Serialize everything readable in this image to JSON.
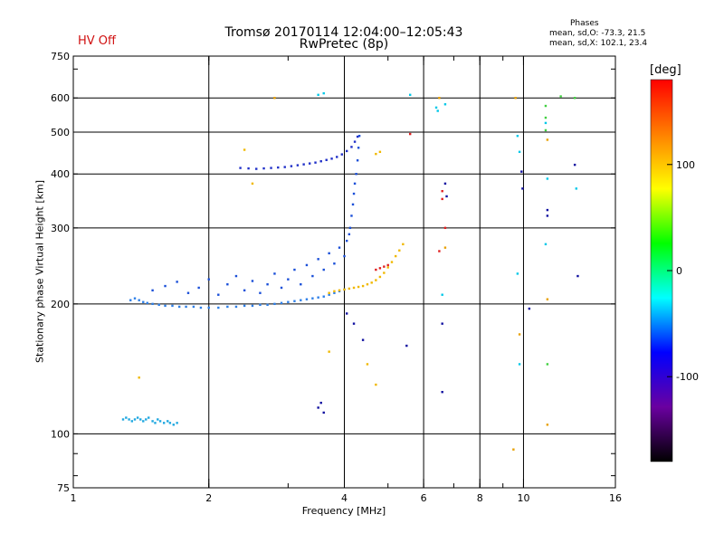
{
  "status": {
    "hv": "HV Off",
    "hv_color": "#d01010"
  },
  "phases": {
    "title": "Phases",
    "o_line": "mean, sd,O: -73.3, 21.5",
    "x_line": "mean, sd,X: 102.1, 23.4"
  },
  "chart_data": {
    "type": "scatter",
    "title": "Tromsø 20170114 12:04:00–12:05:43",
    "subtitle": "RwPretec (8p)",
    "xlabel": "Frequency [MHz]",
    "ylabel": "Stationary phase Virtual Height [km]",
    "x_scale": "log",
    "y_scale": "log",
    "xlim": [
      1,
      16
    ],
    "ylim": [
      75,
      750
    ],
    "x_ticks": [
      1,
      2,
      4,
      6,
      8,
      10,
      16
    ],
    "x_tick_labels": [
      "1",
      "2",
      "4",
      "6",
      "8",
      "10",
      "16"
    ],
    "x_grid": [
      2,
      4,
      6,
      8,
      10
    ],
    "y_ticks": [
      75,
      100,
      200,
      300,
      400,
      500,
      600,
      750
    ],
    "y_tick_labels": [
      "75",
      "100",
      "200",
      "300",
      "400",
      "500",
      "600",
      "750"
    ],
    "y_grid": [
      100,
      200,
      300,
      400,
      500,
      600
    ],
    "colorbar": {
      "unit": "[deg]",
      "range": [
        -180,
        180
      ],
      "ticks": [
        100,
        0,
        -100
      ],
      "tick_labels": [
        "100",
        "0",
        "-100"
      ],
      "colors": [
        "#000000",
        "#6a00a0",
        "#0000ff",
        "#00ffff",
        "#00ff00",
        "#ffff00",
        "#ff8000",
        "#ff0000"
      ]
    },
    "series": [
      {
        "color": "#1fa7e0",
        "points": [
          [
            1.29,
            108
          ],
          [
            1.31,
            109
          ],
          [
            1.33,
            108
          ],
          [
            1.35,
            107
          ],
          [
            1.37,
            108
          ],
          [
            1.39,
            109
          ],
          [
            1.41,
            108
          ],
          [
            1.43,
            107
          ],
          [
            1.45,
            108
          ],
          [
            1.47,
            109
          ],
          [
            1.5,
            107
          ],
          [
            1.52,
            106
          ],
          [
            1.54,
            108
          ],
          [
            1.56,
            107
          ],
          [
            1.59,
            106
          ],
          [
            1.62,
            107
          ],
          [
            1.64,
            106
          ],
          [
            1.67,
            105
          ],
          [
            1.7,
            106
          ]
        ]
      },
      {
        "color": "#2d7fe8",
        "points": [
          [
            1.34,
            204
          ],
          [
            1.37,
            206
          ],
          [
            1.4,
            204
          ],
          [
            1.43,
            202
          ],
          [
            1.46,
            201
          ],
          [
            1.5,
            200
          ],
          [
            1.55,
            199
          ],
          [
            1.6,
            198
          ],
          [
            1.66,
            198
          ],
          [
            1.72,
            197
          ],
          [
            1.78,
            197
          ],
          [
            1.85,
            197
          ],
          [
            1.92,
            196
          ],
          [
            2.0,
            196
          ],
          [
            2.1,
            196
          ],
          [
            2.2,
            197
          ],
          [
            2.3,
            197
          ],
          [
            2.4,
            198
          ],
          [
            2.5,
            198
          ],
          [
            2.6,
            199
          ],
          [
            2.7,
            199
          ],
          [
            2.8,
            200
          ],
          [
            2.9,
            201
          ],
          [
            3.0,
            202
          ],
          [
            3.1,
            203
          ],
          [
            3.2,
            204
          ],
          [
            3.3,
            205
          ],
          [
            3.4,
            206
          ],
          [
            3.5,
            207
          ],
          [
            3.6,
            208
          ],
          [
            3.7,
            210
          ],
          [
            3.8,
            212
          ],
          [
            3.9,
            214
          ],
          [
            4.0,
            216
          ]
        ]
      },
      {
        "color": "#1a4fd8",
        "points": [
          [
            1.5,
            215
          ],
          [
            1.6,
            220
          ],
          [
            1.7,
            225
          ],
          [
            1.8,
            212
          ],
          [
            1.9,
            218
          ],
          [
            2.0,
            228
          ],
          [
            2.1,
            210
          ],
          [
            2.2,
            222
          ],
          [
            2.3,
            232
          ],
          [
            2.4,
            215
          ],
          [
            2.5,
            226
          ],
          [
            2.6,
            212
          ],
          [
            2.7,
            222
          ],
          [
            2.8,
            235
          ],
          [
            2.9,
            218
          ],
          [
            3.0,
            228
          ],
          [
            3.1,
            240
          ],
          [
            3.2,
            222
          ],
          [
            3.3,
            246
          ],
          [
            3.4,
            232
          ],
          [
            3.5,
            254
          ],
          [
            3.6,
            240
          ],
          [
            3.7,
            262
          ],
          [
            3.8,
            248
          ],
          [
            3.9,
            270
          ],
          [
            4.0,
            258
          ],
          [
            4.05,
            280
          ],
          [
            4.1,
            290
          ],
          [
            4.12,
            300
          ],
          [
            4.15,
            320
          ],
          [
            4.18,
            340
          ],
          [
            4.2,
            360
          ],
          [
            4.22,
            380
          ],
          [
            4.25,
            400
          ],
          [
            4.28,
            430
          ],
          [
            4.3,
            460
          ],
          [
            4.32,
            490
          ]
        ]
      },
      {
        "color": "#2030c8",
        "points": [
          [
            2.35,
            413
          ],
          [
            2.45,
            412
          ],
          [
            2.55,
            411
          ],
          [
            2.65,
            412
          ],
          [
            2.75,
            413
          ],
          [
            2.85,
            414
          ],
          [
            2.95,
            415
          ],
          [
            3.05,
            417
          ],
          [
            3.15,
            419
          ],
          [
            3.25,
            421
          ],
          [
            3.35,
            423
          ],
          [
            3.45,
            425
          ],
          [
            3.55,
            428
          ],
          [
            3.65,
            431
          ],
          [
            3.75,
            434
          ],
          [
            3.85,
            438
          ],
          [
            3.95,
            444
          ],
          [
            4.05,
            452
          ],
          [
            4.15,
            462
          ],
          [
            4.22,
            475
          ],
          [
            4.28,
            488
          ]
        ]
      },
      {
        "color": "#f0b800",
        "points": [
          [
            3.7,
            212
          ],
          [
            3.8,
            214
          ],
          [
            3.9,
            215
          ],
          [
            4.0,
            216
          ],
          [
            4.1,
            217
          ],
          [
            4.2,
            218
          ],
          [
            4.3,
            219
          ],
          [
            4.4,
            220
          ],
          [
            4.5,
            222
          ],
          [
            4.6,
            224
          ],
          [
            4.7,
            227
          ],
          [
            4.8,
            231
          ],
          [
            4.9,
            236
          ],
          [
            5.0,
            243
          ],
          [
            5.1,
            250
          ],
          [
            5.2,
            258
          ],
          [
            5.3,
            266
          ],
          [
            5.4,
            275
          ],
          [
            4.7,
            445
          ],
          [
            4.8,
            450
          ],
          [
            2.5,
            380
          ],
          [
            2.4,
            455
          ],
          [
            3.7,
            155
          ],
          [
            4.5,
            145
          ],
          [
            4.7,
            130
          ],
          [
            1.4,
            135
          ]
        ]
      },
      {
        "color": "#e02020",
        "points": [
          [
            4.7,
            240
          ],
          [
            4.8,
            242
          ],
          [
            4.9,
            244
          ],
          [
            5.0,
            246
          ],
          [
            5.6,
            495
          ],
          [
            6.6,
            350
          ],
          [
            6.6,
            365
          ],
          [
            6.7,
            300
          ],
          [
            6.5,
            265
          ]
        ]
      },
      {
        "color": "#00c8e8",
        "points": [
          [
            3.5,
            610
          ],
          [
            3.6,
            615
          ],
          [
            5.6,
            610
          ],
          [
            6.4,
            570
          ],
          [
            6.45,
            560
          ],
          [
            6.6,
            210
          ],
          [
            6.7,
            580
          ],
          [
            9.7,
            490
          ],
          [
            9.8,
            450
          ],
          [
            9.7,
            235
          ],
          [
            9.8,
            145
          ],
          [
            11.2,
            525
          ],
          [
            11.3,
            390
          ],
          [
            11.2,
            275
          ],
          [
            13.1,
            370
          ]
        ]
      },
      {
        "color": "#1010a0",
        "points": [
          [
            3.5,
            115
          ],
          [
            3.55,
            118
          ],
          [
            3.6,
            112
          ],
          [
            4.05,
            190
          ],
          [
            4.2,
            180
          ],
          [
            4.4,
            165
          ],
          [
            5.5,
            160
          ],
          [
            6.6,
            180
          ],
          [
            6.6,
            125
          ],
          [
            6.7,
            380
          ],
          [
            6.75,
            355
          ],
          [
            9.9,
            405
          ],
          [
            9.95,
            370
          ],
          [
            10.3,
            195
          ],
          [
            11.3,
            330
          ],
          [
            11.3,
            320
          ],
          [
            13.0,
            420
          ],
          [
            13.2,
            232
          ]
        ]
      },
      {
        "color": "#40d040",
        "points": [
          [
            11.2,
            575
          ],
          [
            11.2,
            540
          ],
          [
            11.2,
            505
          ],
          [
            11.3,
            145
          ],
          [
            12.1,
            605
          ],
          [
            13.0,
            600
          ]
        ]
      },
      {
        "color": "#e8a000",
        "points": [
          [
            2.8,
            600
          ],
          [
            9.6,
            600
          ],
          [
            9.8,
            170
          ],
          [
            9.5,
            92
          ],
          [
            11.3,
            105
          ],
          [
            11.3,
            480
          ],
          [
            11.3,
            205
          ],
          [
            6.7,
            270
          ],
          [
            6.5,
            600
          ]
        ]
      }
    ]
  }
}
